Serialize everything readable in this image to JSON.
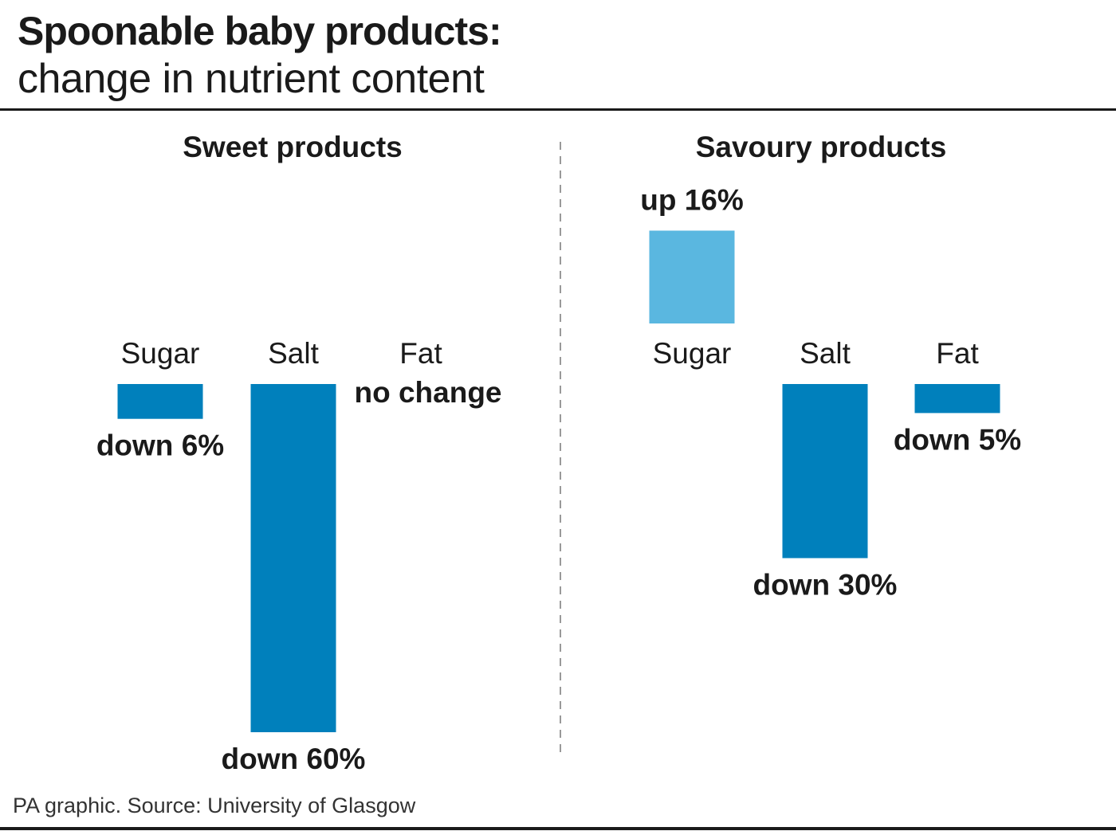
{
  "header": {
    "title": "Spoonable baby products:",
    "subtitle": "change in nutrient content"
  },
  "footer": {
    "source": "PA graphic. Source: University of Glasgow"
  },
  "colors": {
    "decrease": "#0080bc",
    "increase": "#5ab7e0",
    "text": "#1a1a1a",
    "divider": "#999999"
  },
  "chart_data": [
    {
      "type": "bar",
      "title": "Sweet products",
      "categories": [
        "Sugar",
        "Salt",
        "Fat"
      ],
      "values": [
        -6,
        -60,
        0
      ],
      "value_labels": [
        "down 6%",
        "down 60%",
        "no change"
      ],
      "unit": "%"
    },
    {
      "type": "bar",
      "title": "Savoury products",
      "categories": [
        "Sugar",
        "Salt",
        "Fat"
      ],
      "values": [
        16,
        -30,
        -5
      ],
      "value_labels": [
        "up 16%",
        "down 30%",
        "down 5%"
      ],
      "unit": "%"
    }
  ]
}
